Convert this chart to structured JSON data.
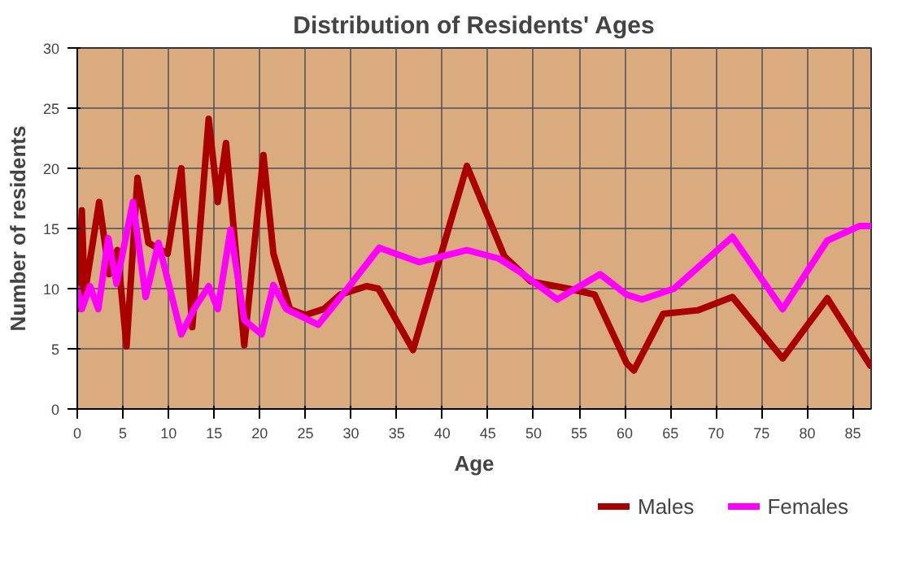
{
  "chart_data": {
    "type": "line",
    "title": "Distribution of Residents' Ages",
    "xlabel": "Age",
    "ylabel": "Number of residents",
    "xlim": [
      0,
      87
    ],
    "ylim": [
      0,
      30
    ],
    "xticks": [
      0,
      5,
      10,
      15,
      20,
      25,
      30,
      35,
      40,
      45,
      50,
      55,
      60,
      65,
      70,
      75,
      80,
      85
    ],
    "yticks": [
      0,
      5,
      10,
      15,
      20,
      25,
      30
    ],
    "grid": true,
    "legend": "bottom",
    "line_style": "solid",
    "series": [
      {
        "name": "Males",
        "color": "#aa0000",
        "x": [
          0,
          0.5,
          0.8,
          2.4,
          3.5,
          4.4,
          5.4,
          6.6,
          7.8,
          9.9,
          11.4,
          12.6,
          14.4,
          15.4,
          16.3,
          18.3,
          20.4,
          21.5,
          23.3,
          25,
          27,
          28.8,
          31.7,
          33,
          36.8,
          42.7,
          46.8,
          49.7,
          53.8,
          56.7,
          60.2,
          61,
          64.2,
          68,
          71.8,
          77.3,
          82.2,
          86.9
        ],
        "values": [
          8.3,
          16.5,
          9.5,
          17.2,
          11.2,
          13.2,
          5.2,
          19.2,
          13.8,
          12.9,
          20,
          6.8,
          24.1,
          17.2,
          22.1,
          5.3,
          21.1,
          12.9,
          8.3,
          7.8,
          8.3,
          9.5,
          10.2,
          10,
          4.9,
          20.2,
          12.7,
          10.6,
          10,
          9.5,
          3.8,
          3.2,
          7.9,
          8.2,
          9.3,
          4.2,
          9.2,
          3.6
        ]
      },
      {
        "name": "Females",
        "color": "#ff00ff",
        "x": [
          0,
          0.5,
          1.4,
          2.3,
          3.4,
          4.3,
          6.1,
          7.5,
          8.9,
          11.4,
          12.8,
          14.4,
          15.4,
          16.8,
          18.3,
          20.2,
          21.5,
          22.9,
          26.4,
          29.6,
          33.1,
          37.5,
          42.7,
          46.2,
          48.5,
          52.6,
          57.3,
          60.2,
          61.9,
          65.4,
          71.8,
          77.3,
          82.2,
          85.7,
          86.9
        ],
        "values": [
          10,
          8.3,
          10.2,
          8.3,
          14.2,
          10.4,
          17.2,
          9.3,
          13.8,
          6.2,
          8.3,
          10.2,
          8.3,
          14.9,
          7.4,
          6.2,
          10.3,
          8.3,
          7,
          10,
          13.4,
          12.2,
          13.2,
          12.5,
          11.4,
          9.1,
          11.2,
          9.5,
          9.1,
          10,
          14.3,
          8.3,
          14,
          15.2,
          15.2
        ]
      }
    ]
  }
}
